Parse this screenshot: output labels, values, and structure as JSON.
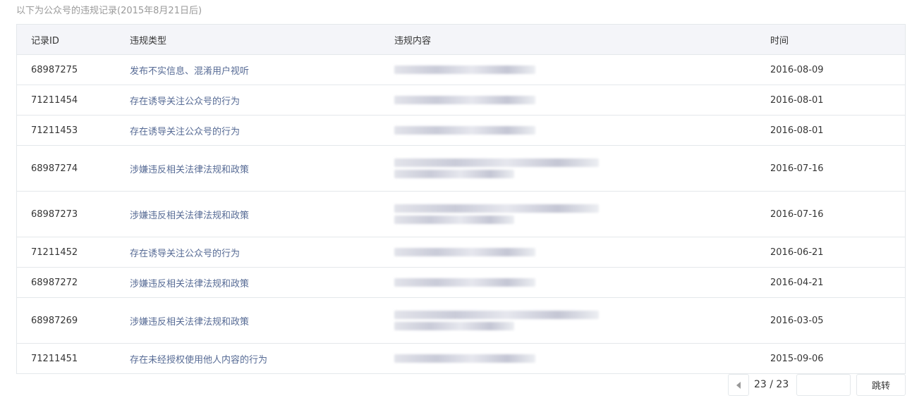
{
  "caption": "以下为公众号的违规记录(2015年8月21日后)",
  "table": {
    "headers": [
      "记录ID",
      "违规类型",
      "违规内容",
      "时间"
    ],
    "rows": [
      {
        "id": "68987275",
        "type": "发布不实信息、混淆用户视听",
        "time": "2016-08-09",
        "lines": 1
      },
      {
        "id": "71211454",
        "type": "存在诱导关注公众号的行为",
        "time": "2016-08-01",
        "lines": 1
      },
      {
        "id": "71211453",
        "type": "存在诱导关注公众号的行为",
        "time": "2016-08-01",
        "lines": 1
      },
      {
        "id": "68987274",
        "type": "涉嫌违反相关法律法规和政策",
        "time": "2016-07-16",
        "lines": 2
      },
      {
        "id": "68987273",
        "type": "涉嫌违反相关法律法规和政策",
        "time": "2016-07-16",
        "lines": 2
      },
      {
        "id": "71211452",
        "type": "存在诱导关注公众号的行为",
        "time": "2016-06-21",
        "lines": 1
      },
      {
        "id": "68987272",
        "type": "涉嫌违反相关法律法规和政策",
        "time": "2016-04-21",
        "lines": 1
      },
      {
        "id": "68987269",
        "type": "涉嫌违反相关法律法规和政策",
        "time": "2016-03-05",
        "lines": 2
      },
      {
        "id": "71211451",
        "type": "存在未经授权使用他人内容的行为",
        "time": "2015-09-06",
        "lines": 1
      }
    ]
  },
  "pagination": {
    "current": "23 / 23",
    "jump_label": "跳转",
    "jump_placeholder": ""
  }
}
